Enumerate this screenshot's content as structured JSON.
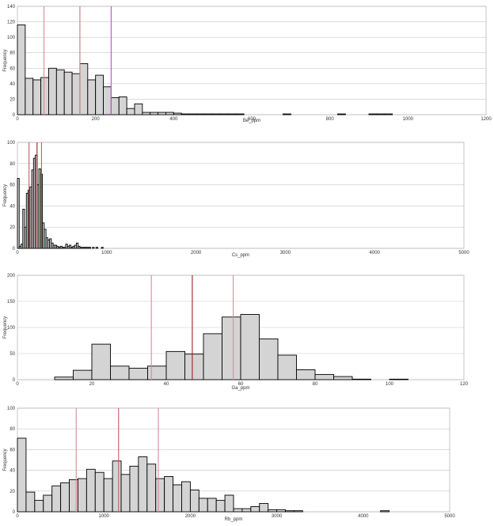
{
  "chart_data": [
    {
      "type": "bar",
      "histogram": true,
      "xlabel": "Be_ppm",
      "ylabel": "Frequency",
      "xlim": [
        0,
        1200
      ],
      "ylim": [
        0,
        140
      ],
      "x_ticks": [
        0,
        200,
        400,
        600,
        800,
        1000,
        1200
      ],
      "y_ticks": [
        0,
        20,
        40,
        60,
        80,
        100,
        120,
        140
      ],
      "grid": true,
      "bin_start": 0,
      "bin_width": 20,
      "values": [
        116,
        47,
        45,
        48,
        60,
        58,
        55,
        53,
        66,
        45,
        51,
        36,
        22,
        23,
        8,
        14,
        3,
        3,
        3,
        3,
        2,
        1,
        1,
        1,
        1,
        1,
        1,
        1,
        1,
        0,
        0,
        0,
        0,
        0,
        1,
        0,
        0,
        0,
        0,
        0,
        0,
        1,
        0,
        0,
        0,
        1,
        1,
        1,
        0,
        0,
        0,
        0,
        0,
        0,
        0,
        0,
        0,
        0,
        0,
        0
      ],
      "markers": [
        {
          "x": 68,
          "color": "#d98a9a"
        },
        {
          "x": 160,
          "color": "#c87a7a"
        },
        {
          "x": 240,
          "color": "#b05cc0"
        }
      ]
    },
    {
      "type": "bar",
      "histogram": true,
      "xlabel": "Cs_ppm",
      "ylabel": "Frequency",
      "xlim": [
        0,
        5000
      ],
      "ylim": [
        0,
        100
      ],
      "x_ticks": [
        0,
        1000,
        2000,
        3000,
        4000,
        5000
      ],
      "y_ticks": [
        0,
        20,
        40,
        60,
        80,
        100
      ],
      "grid": true,
      "bin_start": 0,
      "bin_width": 20,
      "values": [
        66,
        2,
        4,
        37,
        20,
        52,
        55,
        58,
        74,
        85,
        88,
        60,
        75,
        70,
        24,
        18,
        10,
        8,
        9,
        5,
        3,
        3,
        2,
        1,
        2,
        1,
        1,
        4,
        2,
        3,
        1,
        2,
        3,
        5,
        2,
        1,
        1,
        1,
        1,
        1,
        1,
        0,
        1,
        0,
        1,
        0,
        0,
        1,
        0,
        0
      ],
      "markers": [
        {
          "x": 130,
          "color": "#c06060"
        },
        {
          "x": 220,
          "color": "#a02020"
        },
        {
          "x": 270,
          "color": "#c06060"
        }
      ]
    },
    {
      "type": "bar",
      "histogram": true,
      "xlabel": "Ga_ppm",
      "ylabel": "Frequency",
      "xlim": [
        0,
        120
      ],
      "ylim": [
        0,
        200
      ],
      "x_ticks": [
        0,
        20,
        40,
        60,
        80,
        100,
        120
      ],
      "y_ticks": [
        0,
        50,
        100,
        150,
        200
      ],
      "grid": true,
      "bin_start": 0,
      "bin_width": 5,
      "values": [
        0,
        0,
        5,
        18,
        68,
        26,
        22,
        26,
        54,
        49,
        88,
        120,
        125,
        78,
        47,
        19,
        10,
        6,
        1,
        0,
        1,
        0,
        0,
        0
      ],
      "markers": [
        {
          "x": 36,
          "color": "#d98a9a"
        },
        {
          "x": 47,
          "color": "#a02020"
        },
        {
          "x": 58,
          "color": "#d98a9a"
        }
      ]
    },
    {
      "type": "bar",
      "histogram": true,
      "xlabel": "Rb_ppm",
      "ylabel": "Frequency",
      "xlim": [
        0,
        5000
      ],
      "ylim": [
        0,
        100
      ],
      "x_ticks": [
        0,
        1000,
        2000,
        3000,
        4000,
        5000
      ],
      "y_ticks": [
        0,
        20,
        40,
        60,
        80,
        100
      ],
      "grid": true,
      "bin_start": 0,
      "bin_width": 100,
      "values": [
        71,
        19,
        11,
        16,
        25,
        28,
        31,
        32,
        41,
        38,
        32,
        49,
        36,
        44,
        53,
        46,
        32,
        34,
        26,
        29,
        21,
        13,
        13,
        11,
        16,
        3,
        3,
        5,
        8,
        2,
        2,
        1,
        1,
        0,
        0,
        0,
        0,
        0,
        0,
        0,
        0,
        0,
        1,
        0,
        0,
        0,
        0,
        0,
        0,
        0
      ],
      "markers": [
        {
          "x": 680,
          "color": "#d98a9a"
        },
        {
          "x": 1170,
          "color": "#c06060"
        },
        {
          "x": 1630,
          "color": "#d98a9a"
        }
      ]
    }
  ]
}
